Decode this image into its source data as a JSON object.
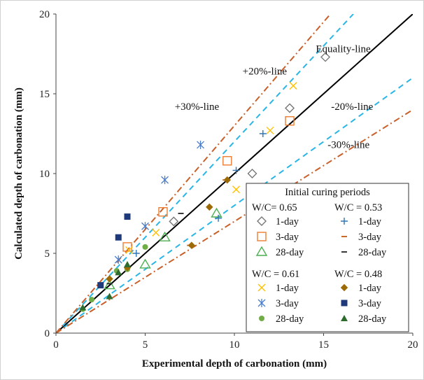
{
  "chart_data": {
    "type": "scatter",
    "xlabel": "Experimental depth of carbonation (mm)",
    "ylabel": "Calculated depth of carbonation (mm)",
    "xlim": [
      0,
      20
    ],
    "ylim": [
      0,
      20
    ],
    "x_ticks": [
      "0",
      "5",
      "10",
      "15",
      "20"
    ],
    "y_ticks": [
      "0",
      "5",
      "10",
      "15",
      "20"
    ],
    "grid": false,
    "lines": [
      {
        "name": "Equality-line",
        "slope": 1.0,
        "style": "solid",
        "color": "#000000"
      },
      {
        "name": "+20%-line",
        "slope": 1.2,
        "style": "dashed",
        "color": "#29b6e6"
      },
      {
        "name": "-20%-line",
        "slope": 0.8,
        "style": "dashed",
        "color": "#29b6e6"
      },
      {
        "name": "+30%-line",
        "slope": 1.3,
        "style": "dashdot",
        "color": "#c9602a"
      },
      {
        "name": "-30%-line",
        "slope": 0.7,
        "style": "dashdot",
        "color": "#c9602a"
      }
    ],
    "annotations": [
      {
        "text": "Equality-line",
        "x": 16.1,
        "y": 17.6
      },
      {
        "text": "+20%-line",
        "x": 11.7,
        "y": 16.2
      },
      {
        "text": "+30%-line",
        "x": 7.9,
        "y": 14.0
      },
      {
        "text": "-20%-line",
        "x": 16.6,
        "y": 14.0
      },
      {
        "text": "-30%-line",
        "x": 16.4,
        "y": 11.6
      }
    ],
    "legend": {
      "title": "Initial curing periods",
      "placement": "bottom-right",
      "groups": [
        "W/C= 0.65",
        "W/C = 0.53",
        "W/C = 0.61",
        "W/C = 0.48"
      ],
      "labels": [
        "1-day",
        "3-day",
        "28-day"
      ]
    },
    "series": [
      {
        "group": "W/C= 0.65",
        "name": "1-day",
        "marker": "diamond-open",
        "color": "#777777",
        "points": [
          [
            6.6,
            7.0
          ],
          [
            11.0,
            10.0
          ],
          [
            13.1,
            14.1
          ],
          [
            15.1,
            17.3
          ]
        ]
      },
      {
        "group": "W/C= 0.65",
        "name": "3-day",
        "marker": "square-open",
        "color": "#ed7d31",
        "points": [
          [
            4.0,
            5.4
          ],
          [
            6.0,
            7.6
          ],
          [
            9.6,
            10.8
          ],
          [
            13.1,
            13.3
          ]
        ]
      },
      {
        "group": "W/C= 0.65",
        "name": "28-day",
        "marker": "triangle-open",
        "color": "#4caf50",
        "points": [
          [
            3.0,
            3.0
          ],
          [
            5.0,
            4.3
          ],
          [
            6.1,
            6.0
          ],
          [
            9.0,
            7.5
          ]
        ]
      },
      {
        "group": "W/C = 0.61",
        "name": "1-day",
        "marker": "x",
        "color": "#ffc000",
        "points": [
          [
            4.1,
            5.2
          ],
          [
            5.6,
            6.3
          ],
          [
            10.1,
            9.0
          ],
          [
            12.0,
            12.7
          ],
          [
            13.3,
            15.5
          ]
        ]
      },
      {
        "group": "W/C = 0.61",
        "name": "3-day",
        "marker": "asterisk",
        "color": "#4a7ecb",
        "points": [
          [
            3.5,
            4.6
          ],
          [
            5.0,
            6.7
          ],
          [
            6.1,
            9.6
          ],
          [
            8.1,
            11.8
          ]
        ]
      },
      {
        "group": "W/C = 0.61",
        "name": "28-day",
        "marker": "circle",
        "color": "#70ad47",
        "points": [
          [
            1.5,
            1.5
          ],
          [
            2.0,
            2.1
          ],
          [
            3.4,
            3.9
          ],
          [
            4.0,
            4.0
          ],
          [
            5.0,
            5.4
          ]
        ]
      },
      {
        "group": "W/C = 0.53",
        "name": "1-day",
        "marker": "plus",
        "color": "#2e75b6",
        "points": [
          [
            4.5,
            5.0
          ],
          [
            9.1,
            7.2
          ],
          [
            10.1,
            10.2
          ],
          [
            11.6,
            12.5
          ]
        ]
      },
      {
        "group": "W/C = 0.53",
        "name": "3-day",
        "marker": "dash",
        "color": "#c55a11",
        "points": [
          [
            2.5,
            2.9
          ],
          [
            7.5,
            5.5
          ],
          [
            9.5,
            9.6
          ]
        ]
      },
      {
        "group": "W/C = 0.53",
        "name": "28-day",
        "marker": "dash",
        "color": "#222222",
        "points": [
          [
            3.0,
            3.1
          ],
          [
            7.0,
            7.5
          ]
        ]
      },
      {
        "group": "W/C = 0.48",
        "name": "1-day",
        "marker": "diamond",
        "color": "#9c6b06",
        "points": [
          [
            3.0,
            3.4
          ],
          [
            4.0,
            4.1
          ],
          [
            7.6,
            5.5
          ],
          [
            8.6,
            7.9
          ],
          [
            9.6,
            9.6
          ]
        ]
      },
      {
        "group": "W/C = 0.48",
        "name": "3-day",
        "marker": "square",
        "color": "#1f3a7a",
        "points": [
          [
            2.5,
            3.0
          ],
          [
            3.5,
            6.0
          ],
          [
            4.0,
            7.3
          ]
        ]
      },
      {
        "group": "W/C = 0.48",
        "name": "28-day",
        "marker": "triangle",
        "color": "#2e6b2e",
        "points": [
          [
            1.5,
            1.6
          ],
          [
            3.0,
            2.3
          ],
          [
            3.5,
            3.8
          ],
          [
            4.0,
            4.3
          ]
        ]
      }
    ]
  }
}
